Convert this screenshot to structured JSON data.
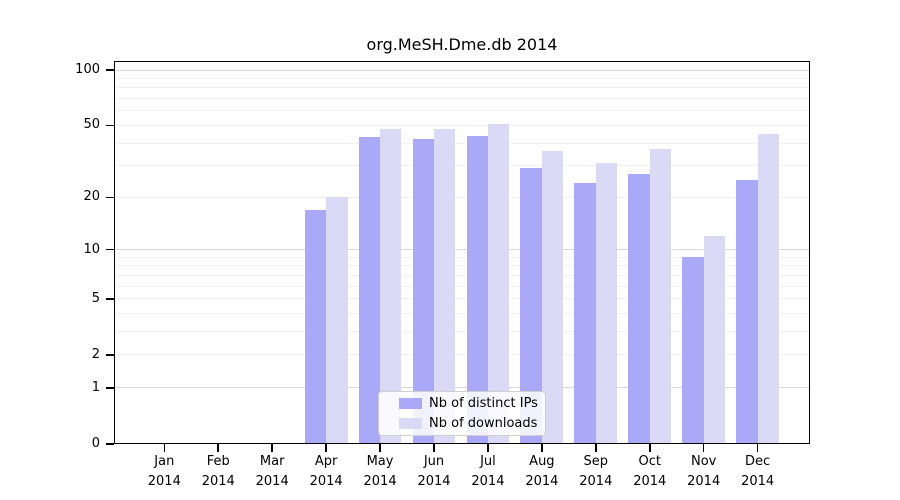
{
  "title": "org.MeSH.Dme.db 2014",
  "chart_data": {
    "type": "bar",
    "title": "org.MeSH.Dme.db 2014",
    "categories": [
      "Jan",
      "Feb",
      "Mar",
      "Apr",
      "May",
      "Jun",
      "Jul",
      "Aug",
      "Sep",
      "Oct",
      "Nov",
      "Dec"
    ],
    "year": "2014",
    "series": [
      {
        "name": "Nb of distinct IPs",
        "color": "#a9a9f7",
        "values": [
          0,
          0,
          0,
          17,
          43,
          42,
          44,
          29,
          24,
          27,
          9,
          25
        ]
      },
      {
        "name": "Nb of downloads",
        "color": "#dadaf7",
        "values": [
          0,
          0,
          0,
          20,
          48,
          48,
          51,
          36,
          31,
          37,
          12,
          45
        ]
      }
    ],
    "xlabel": "",
    "ylabel": "",
    "y_scale": "log1p",
    "ylim": [
      0,
      110
    ],
    "y_ticks": [
      0,
      1,
      2,
      5,
      10,
      20,
      50,
      100
    ],
    "y_minor_grid": [
      2,
      3,
      4,
      5,
      6,
      7,
      8,
      9,
      20,
      30,
      40,
      50,
      60,
      70,
      80,
      90
    ],
    "y_major_grid": [
      1,
      10,
      100
    ],
    "grid": "on",
    "legend_position": "lower center"
  },
  "legend": {
    "items": [
      {
        "label": "Nb of distinct IPs",
        "color": "#a9a9f7"
      },
      {
        "label": "Nb of downloads",
        "color": "#dadaf7"
      }
    ]
  },
  "colors": {
    "background": "#ffffff",
    "axis": "#000000",
    "grid_minor": "#f0f0f0",
    "grid_major": "#d8d8d8",
    "bar_distinct_ips": "#a9a9f7",
    "bar_downloads": "#dadaf7"
  }
}
